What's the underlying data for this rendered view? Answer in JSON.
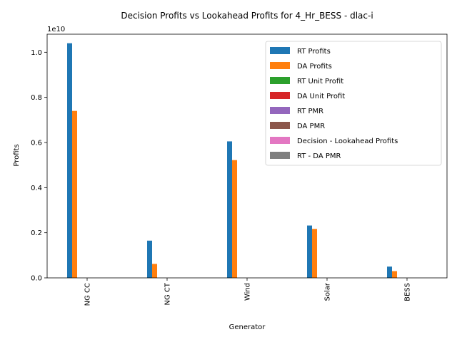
{
  "chart_data": {
    "type": "bar",
    "title": "Decision Profits vs Lookahead Profits for 4_Hr_BESS - dlac-i",
    "xlabel": "Generator",
    "ylabel": "Profits",
    "y_scale_label": "1e10",
    "categories": [
      "NG CC",
      "NG CT",
      "Wind",
      "Solar",
      "BESS"
    ],
    "ylim": [
      0,
      1.08
    ],
    "yticks": [
      "0.0",
      "0.2",
      "0.4",
      "0.6",
      "0.8",
      "1.0"
    ],
    "legend_position": "upper right",
    "grid": false,
    "series": [
      {
        "name": "RT Profits",
        "color": "#1f77b4",
        "values": [
          1.04,
          0.165,
          0.605,
          0.232,
          0.05
        ]
      },
      {
        "name": "DA Profits",
        "color": "#ff7f0e",
        "values": [
          0.74,
          0.062,
          0.522,
          0.217,
          0.03
        ]
      },
      {
        "name": "RT Unit Profit",
        "color": "#2ca02c",
        "values": [
          0,
          0,
          0,
          0,
          0
        ]
      },
      {
        "name": "DA Unit Profit",
        "color": "#d62728",
        "values": [
          0,
          0,
          0,
          0,
          0
        ]
      },
      {
        "name": "RT PMR",
        "color": "#9467bd",
        "values": [
          0,
          0,
          0,
          0,
          0
        ]
      },
      {
        "name": "DA PMR",
        "color": "#8c564b",
        "values": [
          0,
          0,
          0,
          0,
          0
        ]
      },
      {
        "name": "Decision - Lookahead Profits",
        "color": "#e377c2",
        "values": [
          0,
          0,
          0,
          0,
          0
        ]
      },
      {
        "name": "RT - DA PMR",
        "color": "#7f7f7f",
        "values": [
          0,
          0,
          0,
          0,
          0
        ]
      }
    ]
  }
}
